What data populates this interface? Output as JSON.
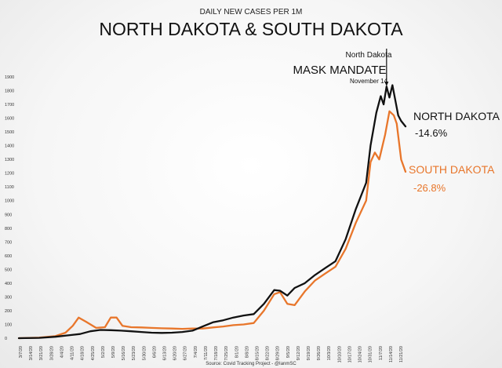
{
  "chart_data": {
    "type": "line",
    "subtitle": "DAILY NEW CASES PER 1M",
    "title": "NORTH DAKOTA & SOUTH DAKOTA",
    "source": "Source: Covid Tracking Project - @IanmSC",
    "ylim": [
      0,
      1900
    ],
    "y_ticks": [
      0,
      100,
      200,
      300,
      400,
      500,
      600,
      700,
      800,
      900,
      1000,
      1100,
      1200,
      1300,
      1400,
      1500,
      1600,
      1700,
      1800,
      1900
    ],
    "x_start": "2020-03-07",
    "x_end": "2020-11-27",
    "x_tick_labels": [
      "3/7/20",
      "3/14/20",
      "3/21/20",
      "3/28/20",
      "4/4/20",
      "4/11/20",
      "4/18/20",
      "4/25/20",
      "5/2/20",
      "5/9/20",
      "5/16/20",
      "5/23/20",
      "5/30/20",
      "6/6/20",
      "6/13/20",
      "6/20/20",
      "6/27/20",
      "7/4/20",
      "7/11/20",
      "7/18/20",
      "7/25/20",
      "8/1/20",
      "8/8/20",
      "8/15/20",
      "8/22/20",
      "8/29/20",
      "9/5/20",
      "9/12/20",
      "9/19/20",
      "9/26/20",
      "10/3/20",
      "10/10/20",
      "10/17/20",
      "10/24/20",
      "10/31/20",
      "11/7/20",
      "11/14/20",
      "11/21/20"
    ],
    "grid": false,
    "series": [
      {
        "name": "NORTH DAKOTA",
        "change": "-14.6%",
        "color": "#111111",
        "points": [
          [
            "2020-03-07",
            0
          ],
          [
            "2020-03-21",
            2
          ],
          [
            "2020-04-01",
            10
          ],
          [
            "2020-04-11",
            22
          ],
          [
            "2020-04-18",
            30
          ],
          [
            "2020-04-25",
            50
          ],
          [
            "2020-05-02",
            60
          ],
          [
            "2020-05-09",
            58
          ],
          [
            "2020-05-16",
            55
          ],
          [
            "2020-05-23",
            50
          ],
          [
            "2020-05-30",
            45
          ],
          [
            "2020-06-06",
            40
          ],
          [
            "2020-06-13",
            38
          ],
          [
            "2020-06-20",
            40
          ],
          [
            "2020-06-27",
            45
          ],
          [
            "2020-07-04",
            55
          ],
          [
            "2020-07-11",
            85
          ],
          [
            "2020-07-18",
            115
          ],
          [
            "2020-07-25",
            130
          ],
          [
            "2020-08-01",
            150
          ],
          [
            "2020-08-08",
            165
          ],
          [
            "2020-08-15",
            175
          ],
          [
            "2020-08-22",
            250
          ],
          [
            "2020-08-29",
            350
          ],
          [
            "2020-09-02",
            345
          ],
          [
            "2020-09-07",
            310
          ],
          [
            "2020-09-12",
            365
          ],
          [
            "2020-09-19",
            400
          ],
          [
            "2020-09-26",
            460
          ],
          [
            "2020-10-03",
            510
          ],
          [
            "2020-10-10",
            560
          ],
          [
            "2020-10-17",
            720
          ],
          [
            "2020-10-24",
            940
          ],
          [
            "2020-10-31",
            1130
          ],
          [
            "2020-11-03",
            1400
          ],
          [
            "2020-11-07",
            1640
          ],
          [
            "2020-11-10",
            1760
          ],
          [
            "2020-11-12",
            1700
          ],
          [
            "2020-11-14",
            1830
          ],
          [
            "2020-11-16",
            1750
          ],
          [
            "2020-11-18",
            1840
          ],
          [
            "2020-11-20",
            1730
          ],
          [
            "2020-11-22",
            1620
          ],
          [
            "2020-11-24",
            1580
          ],
          [
            "2020-11-27",
            1540
          ]
        ]
      },
      {
        "name": "SOUTH DAKOTA",
        "change": "-26.8%",
        "color": "#e8762b",
        "points": [
          [
            "2020-03-07",
            0
          ],
          [
            "2020-03-21",
            4
          ],
          [
            "2020-04-01",
            15
          ],
          [
            "2020-04-08",
            40
          ],
          [
            "2020-04-13",
            90
          ],
          [
            "2020-04-17",
            150
          ],
          [
            "2020-04-22",
            120
          ],
          [
            "2020-04-29",
            75
          ],
          [
            "2020-05-05",
            80
          ],
          [
            "2020-05-09",
            150
          ],
          [
            "2020-05-13",
            150
          ],
          [
            "2020-05-17",
            90
          ],
          [
            "2020-05-23",
            80
          ],
          [
            "2020-05-30",
            78
          ],
          [
            "2020-06-06",
            75
          ],
          [
            "2020-06-13",
            72
          ],
          [
            "2020-06-20",
            70
          ],
          [
            "2020-06-27",
            68
          ],
          [
            "2020-07-04",
            70
          ],
          [
            "2020-07-11",
            70
          ],
          [
            "2020-07-18",
            78
          ],
          [
            "2020-07-25",
            85
          ],
          [
            "2020-08-01",
            95
          ],
          [
            "2020-08-08",
            100
          ],
          [
            "2020-08-15",
            110
          ],
          [
            "2020-08-22",
            200
          ],
          [
            "2020-08-29",
            320
          ],
          [
            "2020-09-02",
            335
          ],
          [
            "2020-09-07",
            250
          ],
          [
            "2020-09-12",
            240
          ],
          [
            "2020-09-19",
            340
          ],
          [
            "2020-09-26",
            420
          ],
          [
            "2020-10-03",
            470
          ],
          [
            "2020-10-10",
            520
          ],
          [
            "2020-10-17",
            650
          ],
          [
            "2020-10-24",
            840
          ],
          [
            "2020-10-31",
            1000
          ],
          [
            "2020-11-03",
            1280
          ],
          [
            "2020-11-06",
            1350
          ],
          [
            "2020-11-09",
            1300
          ],
          [
            "2020-11-13",
            1480
          ],
          [
            "2020-11-16",
            1650
          ],
          [
            "2020-11-19",
            1620
          ],
          [
            "2020-11-21",
            1560
          ],
          [
            "2020-11-24",
            1300
          ],
          [
            "2020-11-27",
            1210
          ]
        ]
      }
    ],
    "annotation": {
      "line1": "North Dakota",
      "line2": "MASK MANDATE",
      "line3": "November 14",
      "date": "2020-11-14"
    }
  }
}
